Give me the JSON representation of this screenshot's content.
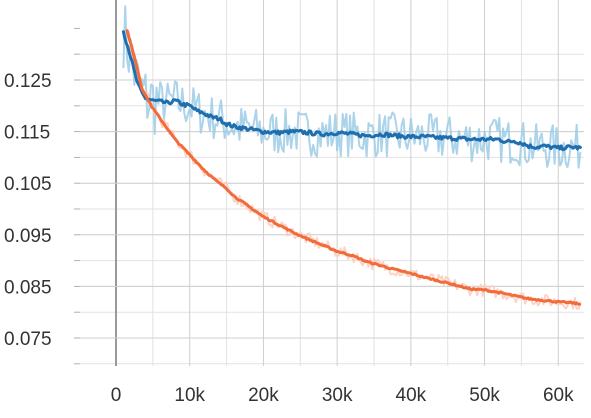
{
  "chart_data": {
    "type": "line",
    "title": "",
    "xlabel": "",
    "ylabel": "",
    "xlim": [
      -5000,
      66000
    ],
    "ylim": [
      0.0695,
      0.1345
    ],
    "grid": true,
    "legend": "none",
    "x_ticks": [
      0,
      10000,
      20000,
      30000,
      40000,
      50000,
      60000
    ],
    "x_tick_labels": [
      "0",
      "10k",
      "20k",
      "30k",
      "40k",
      "50k",
      "60k"
    ],
    "y_ticks": [
      0.075,
      0.085,
      0.095,
      0.105,
      0.115,
      0.125
    ],
    "y_tick_labels": [
      "0.075",
      "0.085",
      "0.095",
      "0.105",
      "0.115",
      "0.125"
    ],
    "series": [
      {
        "color": "#1f6faf",
        "raw_color": "#9ccbe6",
        "x": [
          1000,
          1500,
          2000,
          2500,
          3000,
          3500,
          4000,
          5000,
          6000,
          7000,
          8000,
          9000,
          10000,
          11000,
          12000,
          13000,
          14000,
          15000,
          16000,
          18000,
          20000,
          22000,
          24000,
          26000,
          28000,
          30000,
          32000,
          34000,
          36000,
          38000,
          40000,
          42000,
          44000,
          46000,
          48000,
          50000,
          52000,
          53000,
          54000,
          55000,
          56000,
          57000,
          58000,
          60000,
          62000,
          63000
        ],
        "values": [
          0.1345,
          0.132,
          0.1295,
          0.1265,
          0.124,
          0.1225,
          0.1215,
          0.121,
          0.1208,
          0.1205,
          0.121,
          0.1203,
          0.12,
          0.119,
          0.1185,
          0.1178,
          0.1175,
          0.1165,
          0.116,
          0.1155,
          0.115,
          0.1148,
          0.115,
          0.1148,
          0.1145,
          0.1148,
          0.1145,
          0.1142,
          0.1145,
          0.1142,
          0.114,
          0.114,
          0.1138,
          0.1137,
          0.1135,
          0.1135,
          0.1135,
          0.113,
          0.1132,
          0.1128,
          0.1122,
          0.112,
          0.1122,
          0.1118,
          0.112,
          0.1118
        ]
      },
      {
        "color": "#f26b3a",
        "raw_color": "#fbcdbb",
        "x": [
          1500,
          2000,
          2500,
          3000,
          3500,
          4000,
          5000,
          6000,
          7000,
          8000,
          9000,
          10000,
          11000,
          12000,
          13000,
          14000,
          15000,
          16000,
          18000,
          20000,
          22000,
          24000,
          26000,
          28000,
          30000,
          32000,
          34000,
          36000,
          38000,
          40000,
          42000,
          44000,
          46000,
          48000,
          50000,
          52000,
          54000,
          56000,
          58000,
          60000,
          62000,
          63000
        ],
        "values": [
          0.1345,
          0.132,
          0.1295,
          0.1265,
          0.1235,
          0.122,
          0.1195,
          0.1175,
          0.1155,
          0.1135,
          0.112,
          0.1105,
          0.109,
          0.1075,
          0.1062,
          0.105,
          0.104,
          0.1025,
          0.1005,
          0.0985,
          0.097,
          0.0955,
          0.0942,
          0.093,
          0.0918,
          0.091,
          0.0898,
          0.089,
          0.0882,
          0.0875,
          0.0867,
          0.086,
          0.0853,
          0.0845,
          0.0843,
          0.0838,
          0.0832,
          0.0826,
          0.0823,
          0.082,
          0.0818,
          0.0815
        ]
      }
    ]
  }
}
